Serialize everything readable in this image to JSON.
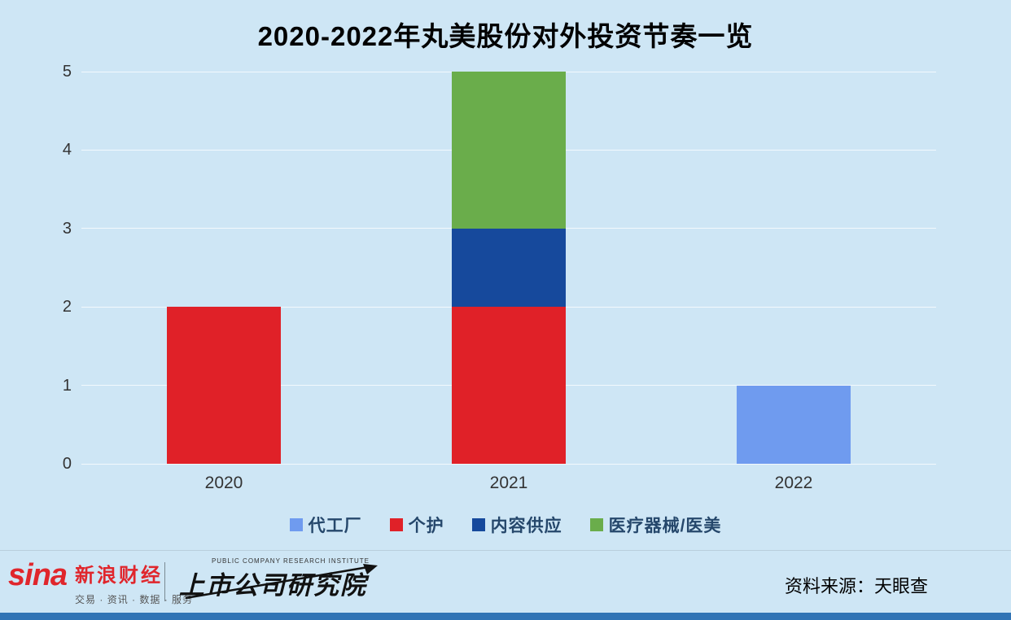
{
  "chart_data": {
    "type": "bar",
    "stacked": true,
    "title": "2020-2022年丸美股份对外投资节奏一览",
    "categories": [
      "2020",
      "2021",
      "2022"
    ],
    "series": [
      {
        "name": "代工厂",
        "slug": "oem-factory",
        "color": "#6f9bef",
        "values": [
          0,
          0,
          1
        ]
      },
      {
        "name": "个护",
        "slug": "personal-care",
        "color": "#e02128",
        "values": [
          2,
          2,
          0
        ]
      },
      {
        "name": "内容供应",
        "slug": "content-supply",
        "color": "#16499c",
        "values": [
          0,
          1,
          0
        ]
      },
      {
        "name": "医疗器械/医美",
        "slug": "medical-devices-beauty",
        "color": "#6aad4b",
        "values": [
          0,
          2,
          0
        ]
      }
    ],
    "xlabel": "",
    "ylabel": "",
    "ylim": [
      0,
      5
    ],
    "yticks": [
      0,
      1,
      2,
      3,
      4,
      5
    ],
    "grid": true,
    "legend_position": "bottom"
  },
  "footer": {
    "sina_logo": "sina",
    "sina_brand": "新浪财经",
    "sina_tagline": "交易 · 资讯 · 数据 · 服务",
    "institute_en": "PUBLIC COMPANY RESEARCH INSTITUTE",
    "institute": "上市公司研究院",
    "source": "资料来源：天眼查"
  }
}
